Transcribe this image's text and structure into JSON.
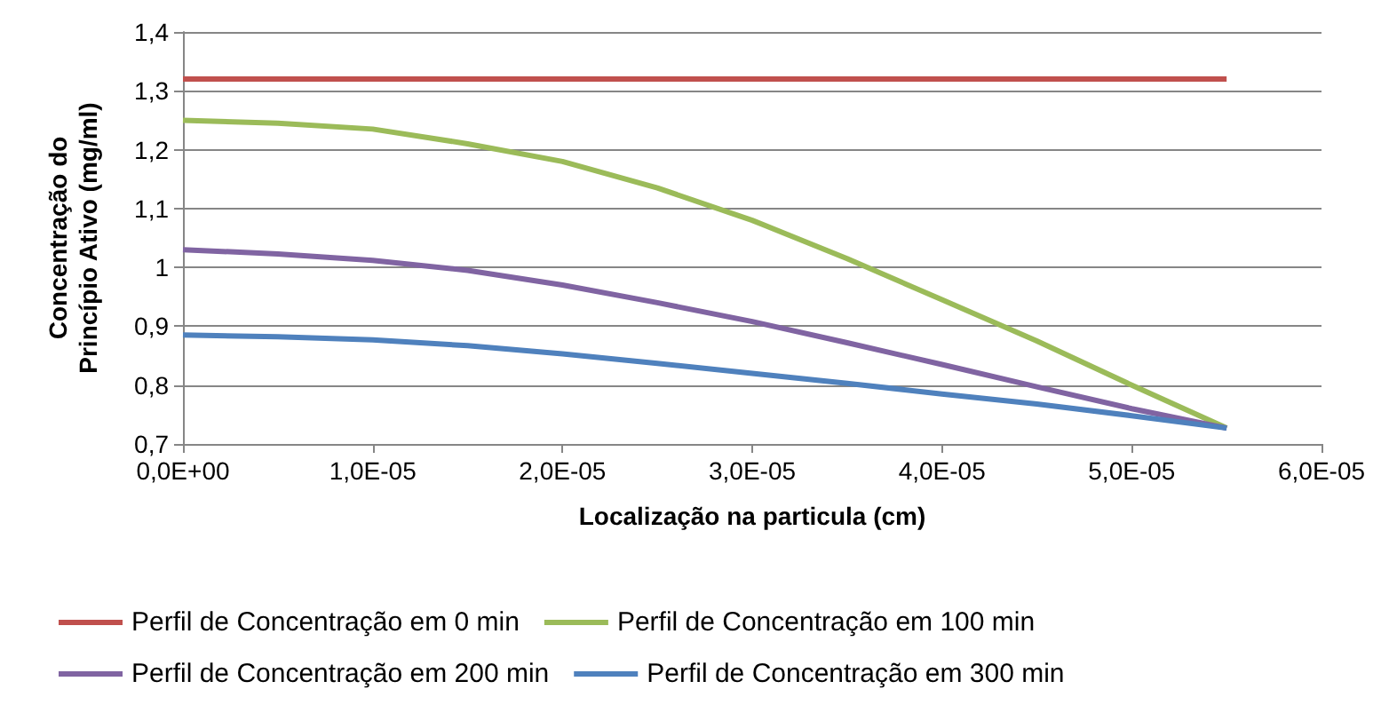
{
  "chart_data": {
    "type": "line",
    "xlabel": "Localização na particula (cm)",
    "ylabel": "Concentração do Princípio Ativo (mg/ml)",
    "categories": [
      "0,0E+00",
      null,
      "1,0E-05",
      null,
      "2,0E-05",
      null,
      "3,0E-05",
      null,
      "4,0E-05",
      null,
      "5,0E-05",
      null,
      "6,0E-05"
    ],
    "series": [
      {
        "name": "Perfil de Concentração em 0 min",
        "color": "#c0504d",
        "values": [
          1.32,
          1.32,
          1.32,
          1.32,
          1.32,
          1.32,
          1.32,
          1.32,
          1.32,
          1.32,
          1.32,
          1.32,
          null
        ]
      },
      {
        "name": "Perfil de Concentração em 100 min",
        "color": "#9bbb59",
        "values": [
          1.25,
          1.245,
          1.235,
          1.21,
          1.18,
          1.135,
          1.08,
          1.015,
          0.945,
          0.875,
          0.8,
          0.727,
          null
        ]
      },
      {
        "name": "Perfil de Concentração em 200 min",
        "color": "#8064a2",
        "values": [
          1.03,
          1.023,
          1.012,
          0.995,
          0.97,
          0.94,
          0.908,
          0.872,
          0.835,
          0.797,
          0.76,
          0.727,
          null
        ]
      },
      {
        "name": "Perfil de Concentração em 300 min",
        "color": "#4f81bd",
        "values": [
          0.885,
          0.882,
          0.877,
          0.867,
          0.853,
          0.837,
          0.82,
          0.803,
          0.785,
          0.768,
          0.748,
          0.727,
          null
        ]
      }
    ],
    "ylim": [
      0.7,
      1.4
    ],
    "yticks": [
      {
        "value": 0.7,
        "label": "0,7"
      },
      {
        "value": 0.8,
        "label": "0,8"
      },
      {
        "value": 0.9,
        "label": "0,9"
      },
      1,
      {
        "value": 1.1,
        "label": "1,1"
      },
      {
        "value": 1.2,
        "label": "1,2"
      },
      {
        "value": 1.3,
        "label": "1,3"
      },
      {
        "value": 1.4,
        "label": "1,4"
      }
    ],
    "grid": "y",
    "legend": "bottom",
    "marker": "none",
    "line_style": "solid"
  }
}
